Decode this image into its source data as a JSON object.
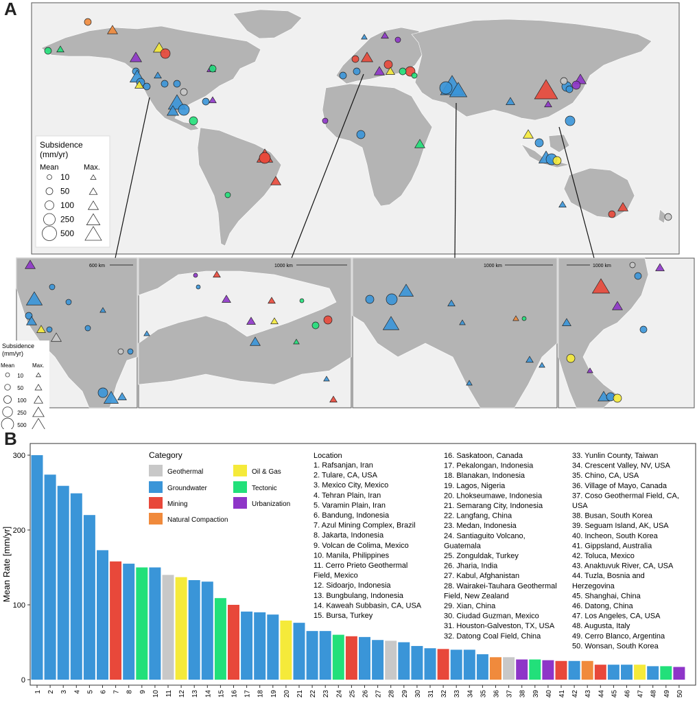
{
  "panel_a": {
    "letter": "A",
    "legend": {
      "title_line1": "Subsidence",
      "title_line2": "(mm/yr)",
      "mean_label": "Mean",
      "max_label": "Max.",
      "values": [
        "10",
        "50",
        "100",
        "250",
        "500"
      ]
    },
    "insets": [
      {
        "scale_label": "600 km"
      },
      {
        "scale_label": "1000 km"
      },
      {
        "scale_label": "1000 km"
      },
      {
        "scale_label": "1000 km"
      }
    ],
    "inset_legend": {
      "title_line1": "Subsidence",
      "title_line2": "(mm/yr)",
      "mean_label": "Mean",
      "max_label": "Max.",
      "values": [
        "10",
        "50",
        "100",
        "250",
        "500"
      ]
    }
  },
  "chart_data": {
    "type": "bar",
    "panel_letter": "B",
    "ylabel": "Mean Rate [mm/yr]",
    "ylim": [
      0,
      310
    ],
    "yticks": [
      0,
      100,
      200,
      300
    ],
    "categories": [
      "1",
      "2",
      "3",
      "4",
      "5",
      "6",
      "7",
      "8",
      "9",
      "10",
      "11",
      "12",
      "13",
      "14",
      "15",
      "16",
      "17",
      "18",
      "19",
      "20",
      "21",
      "22",
      "23",
      "24",
      "25",
      "26",
      "27",
      "28",
      "29",
      "30",
      "31",
      "32",
      "33",
      "34",
      "35",
      "36",
      "37",
      "38",
      "39",
      "40",
      "41",
      "42",
      "43",
      "44",
      "45",
      "46",
      "47",
      "48",
      "49",
      "50"
    ],
    "values": [
      300,
      274,
      259,
      249,
      220,
      173,
      158,
      155,
      150,
      150,
      140,
      137,
      133,
      131,
      109,
      100,
      91,
      90,
      87,
      79,
      76,
      65,
      65,
      60,
      58,
      57,
      53,
      52,
      50,
      45,
      42,
      41,
      40,
      40,
      34,
      30,
      30,
      27,
      27,
      26,
      25,
      25,
      25,
      20,
      20,
      20,
      20,
      18,
      18,
      17
    ],
    "bar_category": [
      "Groundwater",
      "Groundwater",
      "Groundwater",
      "Groundwater",
      "Groundwater",
      "Groundwater",
      "Mining",
      "Groundwater",
      "Tectonic",
      "Groundwater",
      "Geothermal",
      "Oil & Gas",
      "Groundwater",
      "Groundwater",
      "Tectonic",
      "Mining",
      "Groundwater",
      "Groundwater",
      "Groundwater",
      "Oil & Gas",
      "Groundwater",
      "Groundwater",
      "Groundwater",
      "Tectonic",
      "Mining",
      "Groundwater",
      "Groundwater",
      "Geothermal",
      "Groundwater",
      "Groundwater",
      "Groundwater",
      "Mining",
      "Groundwater",
      "Groundwater",
      "Groundwater",
      "Natural Compaction",
      "Geothermal",
      "Urbanization",
      "Tectonic",
      "Urbanization",
      "Mining",
      "Groundwater",
      "Natural Compaction",
      "Mining",
      "Groundwater",
      "Groundwater",
      "Oil & Gas",
      "Groundwater",
      "Tectonic",
      "Urbanization"
    ],
    "legend_title": "Category",
    "legend": [
      {
        "name": "Geothermal",
        "color": "#c8c8c8"
      },
      {
        "name": "Groundwater",
        "color": "#3a95d8"
      },
      {
        "name": "Mining",
        "color": "#e8483a"
      },
      {
        "name": "Natural Compaction",
        "color": "#f08a3c"
      },
      {
        "name": "Oil & Gas",
        "color": "#f5ea3a"
      },
      {
        "name": "Tectonic",
        "color": "#22e07a"
      },
      {
        "name": "Urbanization",
        "color": "#8e35c8"
      }
    ],
    "location_title": "Location",
    "locations": [
      [
        "1. Rafsanjan, Iran",
        "2. Tulare, CA, USA",
        "3. Mexico City, Mexico",
        "4. Tehran Plain, Iran",
        "5. Varamin Plain, Iran",
        "6. Bandung, Indonesia",
        "7. Azul Mining Complex, Brazil",
        "8. Jakarta, Indonesia",
        "9. Volcan de Colima, Mexico",
        "10. Manila, Philippines",
        "11. Cerro Prieto Geothermal",
        "Field, Mexico",
        "12. Sidoarjo, Indonesia",
        "13. Bungbulang, Indonesia",
        "14. Kaweah Subbasin, CA, USA",
        "15. Bursa, Turkey"
      ],
      [
        "16. Saskatoon, Canada",
        "17. Pekalongan, Indonesia",
        "18. Blanakan, Indonesia",
        "19. Lagos, Nigeria",
        "20. Lhokseumawe, Indonesia",
        "21. Semarang City, Indonesia",
        "22. Langfang, China",
        "23. Medan, Indonesia",
        "24. Santiaguito Volcano,",
        "Guatemala",
        "25. Zonguldak, Turkey",
        "26. Jharia, India",
        "27. Kabul, Afghanistan",
        "28. Wairakei-Tauhara Geothermal",
        "Field, New Zealand",
        "29. Xian, China",
        "30. Ciudad Guzman, Mexico",
        "31. Houston-Galveston, TX, USA",
        "32. Datong Coal Field, China"
      ],
      [
        "33. Yunlin County, Taiwan",
        "34. Crescent Valley, NV, USA",
        "35. Chino, CA, USA",
        "36. Village of Mayo, Canada",
        "37. Coso Geothermal Field, CA,",
        "USA",
        "38. Busan, South Korea",
        "39. Seguam Island, AK, USA",
        "40. Incheon, South Korea",
        "41. Gippsland, Australia",
        "42. Toluca, Mexico",
        "43. Anaktuvuk River, CA, USA",
        "44. Tuzla, Bosnia and",
        "Herzegovina",
        "45. Shanghai, China",
        "46. Datong, China",
        "47. Los Angeles, CA, USA",
        "48. Augusta, Italy",
        "49. Cerro Blanco, Argentina",
        "50. Wonsan, South Korea"
      ]
    ]
  },
  "colors": {
    "land": "#b4b4b4",
    "ocean": "#f0f0f0",
    "Geothermal": "#c8c8c8",
    "Groundwater": "#3a95d8",
    "Mining": "#e8483a",
    "Natural Compaction": "#f08a3c",
    "Oil & Gas": "#f5ea3a",
    "Tectonic": "#22e07a",
    "Urbanization": "#8e35c8"
  }
}
